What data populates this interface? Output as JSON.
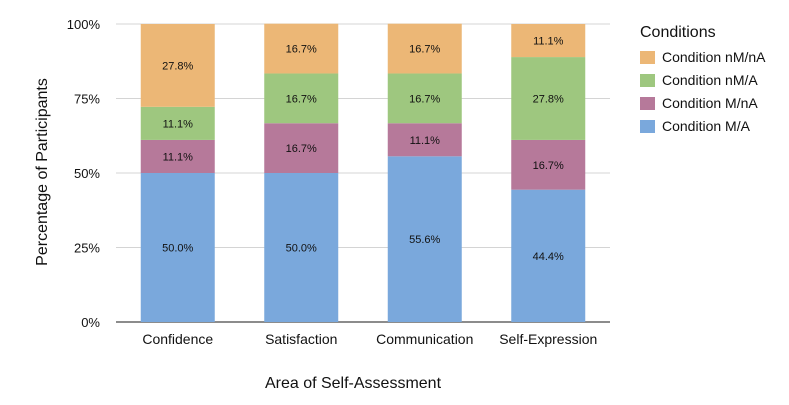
{
  "chart_data": {
    "type": "bar",
    "stacked": true,
    "title": "",
    "xlabel": "Area of Self-Assessment",
    "ylabel": "Percentage of Participants",
    "ylim": [
      0,
      100
    ],
    "yticks": [
      "0%",
      "25%",
      "50%",
      "75%",
      "100%"
    ],
    "ytick_values": [
      0,
      25,
      50,
      75,
      100
    ],
    "grid": true,
    "categories": [
      "Confidence",
      "Satisfaction",
      "Communication",
      "Self-Expression"
    ],
    "legend": {
      "title": "Conditions",
      "position": "right"
    },
    "series": [
      {
        "name": "Condition M/A",
        "color": "#7aa8dc",
        "values": [
          50.0,
          50.0,
          55.6,
          44.4
        ],
        "labels": [
          "50.0%",
          "50.0%",
          "55.6%",
          "44.4%"
        ]
      },
      {
        "name": "Condition M/nA",
        "color": "#b6799a",
        "values": [
          11.1,
          16.7,
          11.1,
          16.7
        ],
        "labels": [
          "11.1%",
          "16.7%",
          "11.1%",
          "16.7%"
        ]
      },
      {
        "name": "Condition nM/A",
        "color": "#9ec77f",
        "values": [
          11.1,
          16.7,
          16.7,
          27.8
        ],
        "labels": [
          "11.1%",
          "16.7%",
          "16.7%",
          "27.8%"
        ]
      },
      {
        "name": "Condition nM/nA",
        "color": "#ecb776",
        "values": [
          27.8,
          16.7,
          16.7,
          11.1
        ],
        "labels": [
          "27.8%",
          "16.7%",
          "16.7%",
          "11.1%"
        ]
      }
    ]
  }
}
